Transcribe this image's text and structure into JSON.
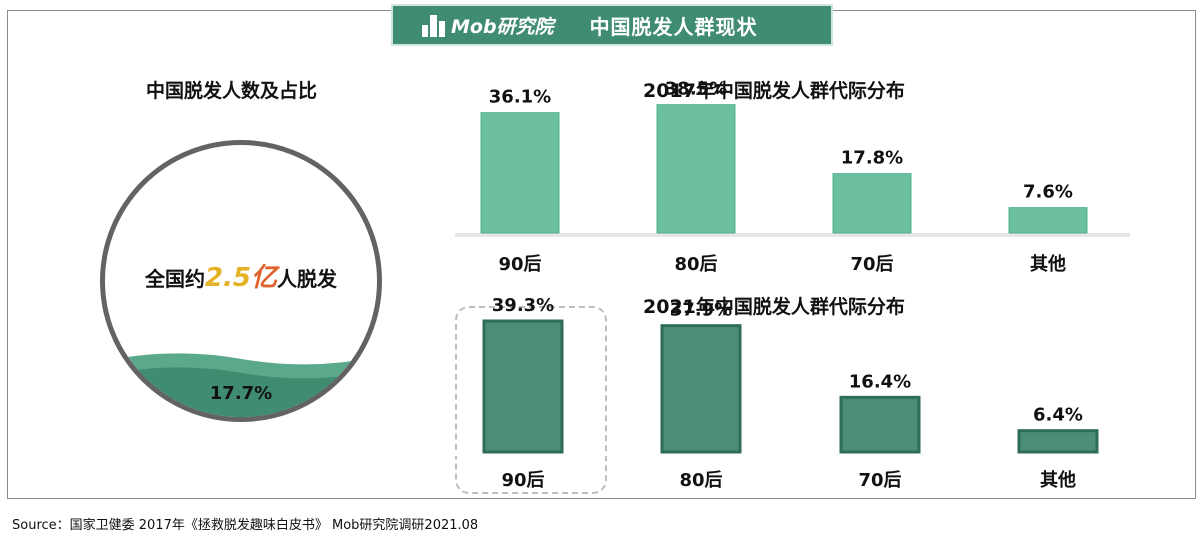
{
  "header": {
    "brand": "Mob研究院",
    "title": "中国脱发人群现状"
  },
  "left_panel": {
    "title": "中国脱发人数及占比",
    "prefix": "全国约",
    "number": "2.5",
    "unit": "亿",
    "suffix": "人脱发",
    "percent": "17.7%",
    "percent_value": 17.7,
    "colors": {
      "fill": "#3f8c71",
      "band": "#5aa98b",
      "ring": "#636363"
    }
  },
  "chart_data": [
    {
      "type": "bar",
      "title": "2017年中国脱发人群代际分布",
      "categories": [
        "90后",
        "80后",
        "70后",
        "其他"
      ],
      "values": [
        36.1,
        38.5,
        17.8,
        7.6
      ],
      "value_labels": [
        "36.1%",
        "38.5%",
        "17.8%",
        "7.6%"
      ],
      "ylim": [
        0,
        45
      ],
      "color": "#6bbf9e",
      "edge_color": "#4fb08d",
      "grid": false
    },
    {
      "type": "bar",
      "title": "2021年中国脱发人群代际分布",
      "categories": [
        "90后",
        "80后",
        "70后",
        "其他"
      ],
      "values": [
        39.3,
        37.9,
        16.4,
        6.4
      ],
      "value_labels": [
        "39.3%",
        "37.9%",
        "16.4%",
        "6.4%"
      ],
      "ylim": [
        0,
        45
      ],
      "color": "#4a8f75",
      "edge_color": "#2f6d56",
      "highlighted_category": "90后",
      "grid": false
    }
  ],
  "source": "Source：国家卫健委   2017年《拯救脱发趣味白皮书》   Mob研究院调研2021.08"
}
